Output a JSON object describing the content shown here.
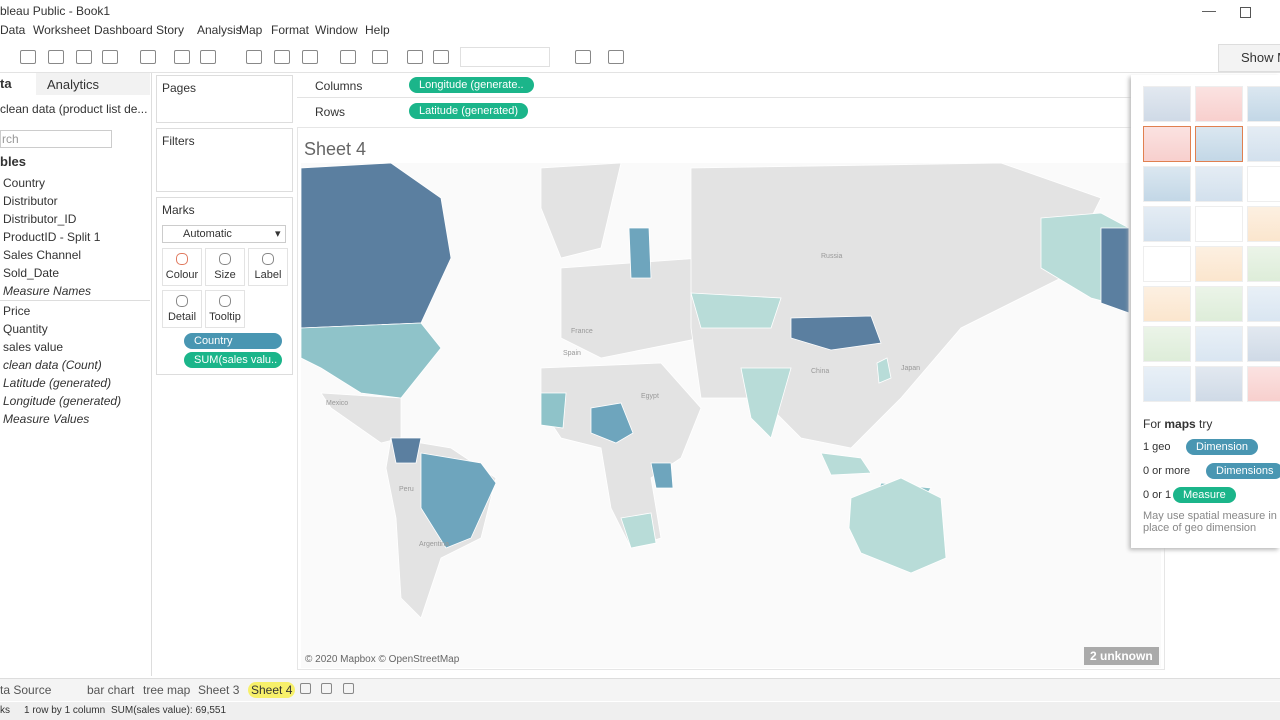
{
  "window": {
    "title": "bleau Public - Book1"
  },
  "menu": [
    "Data",
    "Worksheet",
    "Dashboard",
    "Story",
    "Analysis",
    "Map",
    "Format",
    "Window",
    "Help"
  ],
  "data_pane": {
    "tabs": [
      "ta",
      "Analytics"
    ],
    "source": "clean data (product list de...",
    "search": "rch",
    "section": "bles",
    "dimensions": [
      "Country",
      "Distributor",
      "Distributor_ID",
      "ProductID - Split 1",
      "Sales Channel",
      "Sold_Date",
      "Measure Names"
    ],
    "measures": [
      "Price",
      "Quantity",
      "sales value",
      "clean data (Count)",
      "Latitude (generated)",
      "Longitude (generated)",
      "Measure Values"
    ]
  },
  "cards": {
    "pages": "Pages",
    "filters": "Filters",
    "marks": "Marks",
    "mark_type": "Automatic",
    "buttons": [
      "Colour",
      "Size",
      "Label",
      "Detail",
      "Tooltip"
    ],
    "pills": [
      "Country",
      "SUM(sales valu.."
    ]
  },
  "shelves": {
    "columns": "Columns",
    "columns_pill": "Longitude (generate..",
    "rows": "Rows",
    "rows_pill": "Latitude (generated)"
  },
  "sheet": {
    "title": "Sheet 4",
    "map_labels": [
      "Russia",
      "China",
      "Egypt",
      "Japan",
      "Mexico",
      "Peru",
      "Argentina",
      "France",
      "Spain"
    ],
    "attribution": "© 2020 Mapbox © OpenStreetMap",
    "unknown": "2 unknown"
  },
  "show_me": {
    "button": "Show M",
    "hint": [
      "For",
      "maps",
      "try"
    ],
    "requirements": [
      {
        "label": "1 geo",
        "pill": "Dimension"
      },
      {
        "label": "0 or more",
        "pill": "Dimensions"
      },
      {
        "label": "0 or 1",
        "pill": "Measure"
      }
    ],
    "note": "May use spatial measure in place of geo dimension"
  },
  "sheet_tabs": [
    "ta Source",
    "bar chart",
    "tree map",
    "Sheet 3",
    "Sheet 4"
  ],
  "status": [
    "ks",
    "1 row by 1 column",
    "SUM(sales value): 69,551"
  ]
}
